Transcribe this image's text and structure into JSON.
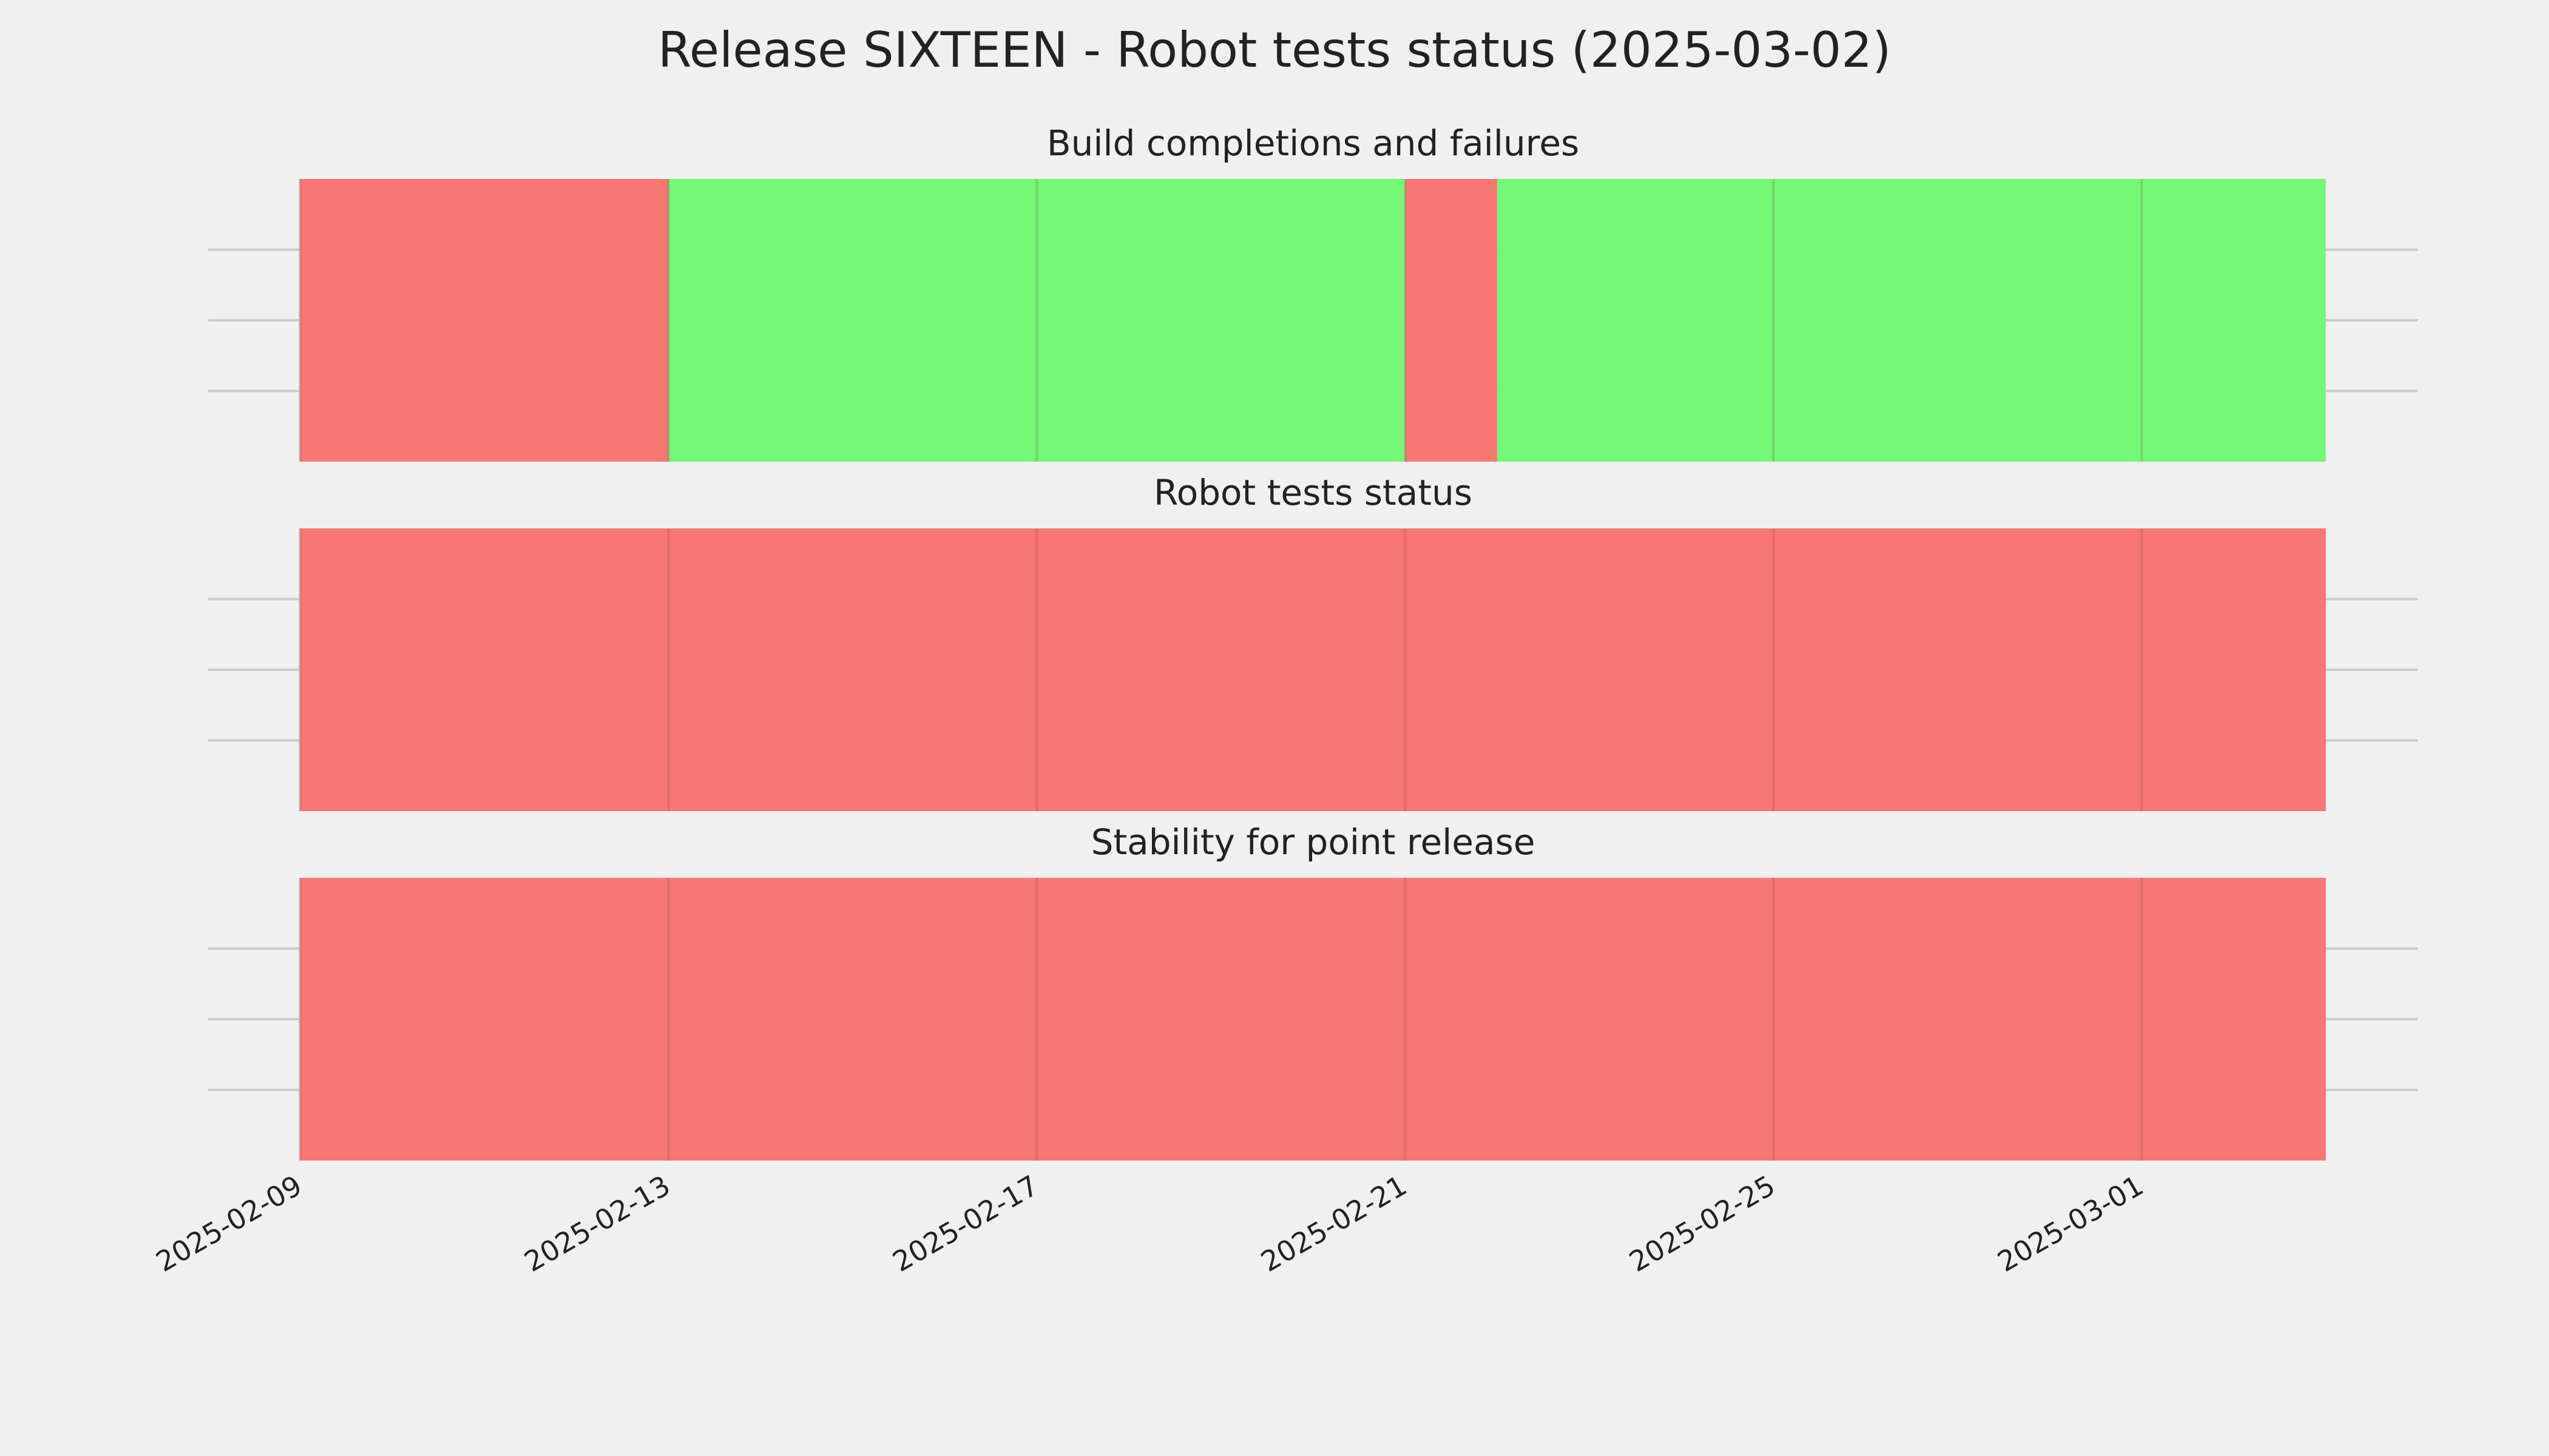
{
  "title": "Release SIXTEEN - Robot tests status (2025-03-02)",
  "chart_data": [
    {
      "type": "span",
      "title": "Build completions and failures",
      "segments": [
        {
          "start": "2025-02-09",
          "end": "2025-02-13",
          "color": "#f77774"
        },
        {
          "start": "2025-02-13",
          "end": "2025-02-21",
          "color": "#75f777"
        },
        {
          "start": "2025-02-21",
          "end": "2025-02-22",
          "color": "#f77774"
        },
        {
          "start": "2025-02-22",
          "end": "2025-03-03",
          "color": "#75f777"
        }
      ],
      "xlim": [
        "2025-02-08",
        "2025-03-04"
      ],
      "xticks": [
        "2025-02-09",
        "2025-02-13",
        "2025-02-17",
        "2025-02-21",
        "2025-02-25",
        "2025-03-01"
      ],
      "ylim": [
        0,
        1
      ],
      "yticks": [
        0.25,
        0.5,
        0.75
      ],
      "grid": true
    },
    {
      "type": "span",
      "title": "Robot tests status",
      "segments": [
        {
          "start": "2025-02-09",
          "end": "2025-03-03",
          "color": "#f77774"
        }
      ],
      "xlim": [
        "2025-02-08",
        "2025-03-04"
      ],
      "xticks": [
        "2025-02-09",
        "2025-02-13",
        "2025-02-17",
        "2025-02-21",
        "2025-02-25",
        "2025-03-01"
      ],
      "ylim": [
        0,
        1
      ],
      "yticks": [
        0.25,
        0.5,
        0.75
      ],
      "grid": true
    },
    {
      "type": "span",
      "title": "Stability for point release",
      "segments": [
        {
          "start": "2025-02-09",
          "end": "2025-03-03",
          "color": "#f77774"
        }
      ],
      "xlim": [
        "2025-02-08",
        "2025-03-04"
      ],
      "xticks": [
        "2025-02-09",
        "2025-02-13",
        "2025-02-17",
        "2025-02-21",
        "2025-02-25",
        "2025-03-01"
      ],
      "ylim": [
        0,
        1
      ],
      "yticks": [
        0.25,
        0.5,
        0.75
      ],
      "grid": true
    }
  ]
}
